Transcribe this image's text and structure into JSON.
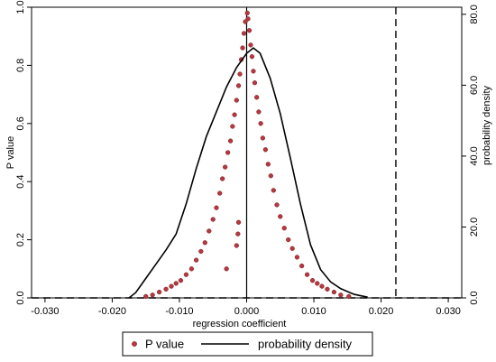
{
  "chart_data": {
    "type": "scatter",
    "title": "",
    "xlabel": "regression coefficient",
    "ylabel_left": "P value",
    "ylabel_right": "probability density",
    "xlim": [
      -0.032,
      0.032
    ],
    "ylim_left": [
      0,
      1.0
    ],
    "ylim_right": [
      0,
      82
    ],
    "xticks": [
      -0.03,
      -0.02,
      -0.01,
      0.0,
      0.01,
      0.02,
      0.03
    ],
    "xtick_labels": [
      "-0.030",
      "-0.020",
      "-0.010",
      "0.000",
      "0.010",
      "0.020",
      "0.030"
    ],
    "yticks_left": [
      0.0,
      0.2,
      0.4,
      0.6,
      0.8,
      1.0
    ],
    "ytick_labels_left": [
      "0.0",
      "0.2",
      "0.4",
      "0.6",
      "0.8",
      "1.0"
    ],
    "yticks_right": [
      0,
      20,
      40,
      60,
      80
    ],
    "ytick_labels_right": [
      "0.0",
      "20.0",
      "40.0",
      "60.0",
      "80.0"
    ],
    "reference_lines": {
      "vertical_solid_x": 0.0,
      "vertical_dashed_x": 0.0222,
      "horizontal_dashed_y": 0.0
    },
    "series": [
      {
        "name": "P value",
        "kind": "scatter",
        "axis": "left",
        "color": "#b5383f",
        "points": [
          [
            -0.0015,
            0.18
          ],
          [
            -0.0013,
            0.22
          ],
          [
            -0.0012,
            0.26
          ],
          [
            -0.003,
            0.1
          ],
          [
            0.0001,
            0.98
          ],
          [
            0.0002,
            0.96
          ],
          [
            -0.0002,
            0.95
          ],
          [
            0.0004,
            0.92
          ],
          [
            -0.0004,
            0.91
          ],
          [
            0.0006,
            0.87
          ],
          [
            -0.0006,
            0.86
          ],
          [
            0.0008,
            0.83
          ],
          [
            -0.0008,
            0.82
          ],
          [
            0.001,
            0.78
          ],
          [
            -0.001,
            0.77
          ],
          [
            0.0012,
            0.74
          ],
          [
            -0.0012,
            0.73
          ],
          [
            0.0015,
            0.69
          ],
          [
            -0.0015,
            0.68
          ],
          [
            0.0018,
            0.64
          ],
          [
            -0.0018,
            0.63
          ],
          [
            0.0021,
            0.6
          ],
          [
            -0.0021,
            0.59
          ],
          [
            0.0024,
            0.55
          ],
          [
            -0.0024,
            0.54
          ],
          [
            0.0028,
            0.51
          ],
          [
            -0.0028,
            0.5
          ],
          [
            0.0032,
            0.46
          ],
          [
            -0.0032,
            0.45
          ],
          [
            0.0036,
            0.42
          ],
          [
            -0.0036,
            0.41
          ],
          [
            0.004,
            0.37
          ],
          [
            -0.004,
            0.36
          ],
          [
            0.0045,
            0.32
          ],
          [
            -0.0045,
            0.31
          ],
          [
            0.005,
            0.28
          ],
          [
            -0.005,
            0.27
          ],
          [
            0.0056,
            0.24
          ],
          [
            -0.0056,
            0.23
          ],
          [
            0.0062,
            0.2
          ],
          [
            -0.0062,
            0.19
          ],
          [
            0.0068,
            0.17
          ],
          [
            -0.0068,
            0.16
          ],
          [
            0.0075,
            0.14
          ],
          [
            -0.0075,
            0.13
          ],
          [
            0.0082,
            0.11
          ],
          [
            -0.0082,
            0.1
          ],
          [
            0.009,
            0.08
          ],
          [
            -0.009,
            0.08
          ],
          [
            0.0098,
            0.06
          ],
          [
            -0.0098,
            0.06
          ],
          [
            0.0105,
            0.05
          ],
          [
            -0.0105,
            0.05
          ],
          [
            0.0112,
            0.04
          ],
          [
            -0.0112,
            0.04
          ],
          [
            0.012,
            0.03
          ],
          [
            -0.012,
            0.03
          ],
          [
            0.013,
            0.02
          ],
          [
            -0.013,
            0.02
          ],
          [
            0.014,
            0.01
          ],
          [
            -0.014,
            0.01
          ],
          [
            0.0152,
            0.005
          ],
          [
            -0.015,
            0.005
          ]
        ]
      },
      {
        "name": "probability density",
        "kind": "line",
        "axis": "right",
        "color": "#000000",
        "x": [
          -0.0175,
          -0.0165,
          -0.015,
          -0.0135,
          -0.012,
          -0.0105,
          -0.009,
          -0.0075,
          -0.006,
          -0.0045,
          -0.003,
          -0.0015,
          0.0,
          0.001,
          0.002,
          0.0035,
          0.005,
          0.0065,
          0.008,
          0.0095,
          0.011,
          0.0125,
          0.014,
          0.016,
          0.018
        ],
        "y": [
          0.0,
          1.5,
          5.5,
          9.5,
          13.5,
          18.0,
          26.5,
          36.5,
          45.5,
          52.5,
          59.5,
          65.0,
          69.0,
          70.5,
          69.0,
          62.0,
          52.0,
          39.5,
          26.5,
          15.0,
          8.0,
          4.5,
          2.6,
          1.0,
          0.2
        ]
      }
    ],
    "legend": {
      "placement": "bottom",
      "entries": [
        "P value",
        "probability density"
      ]
    }
  }
}
